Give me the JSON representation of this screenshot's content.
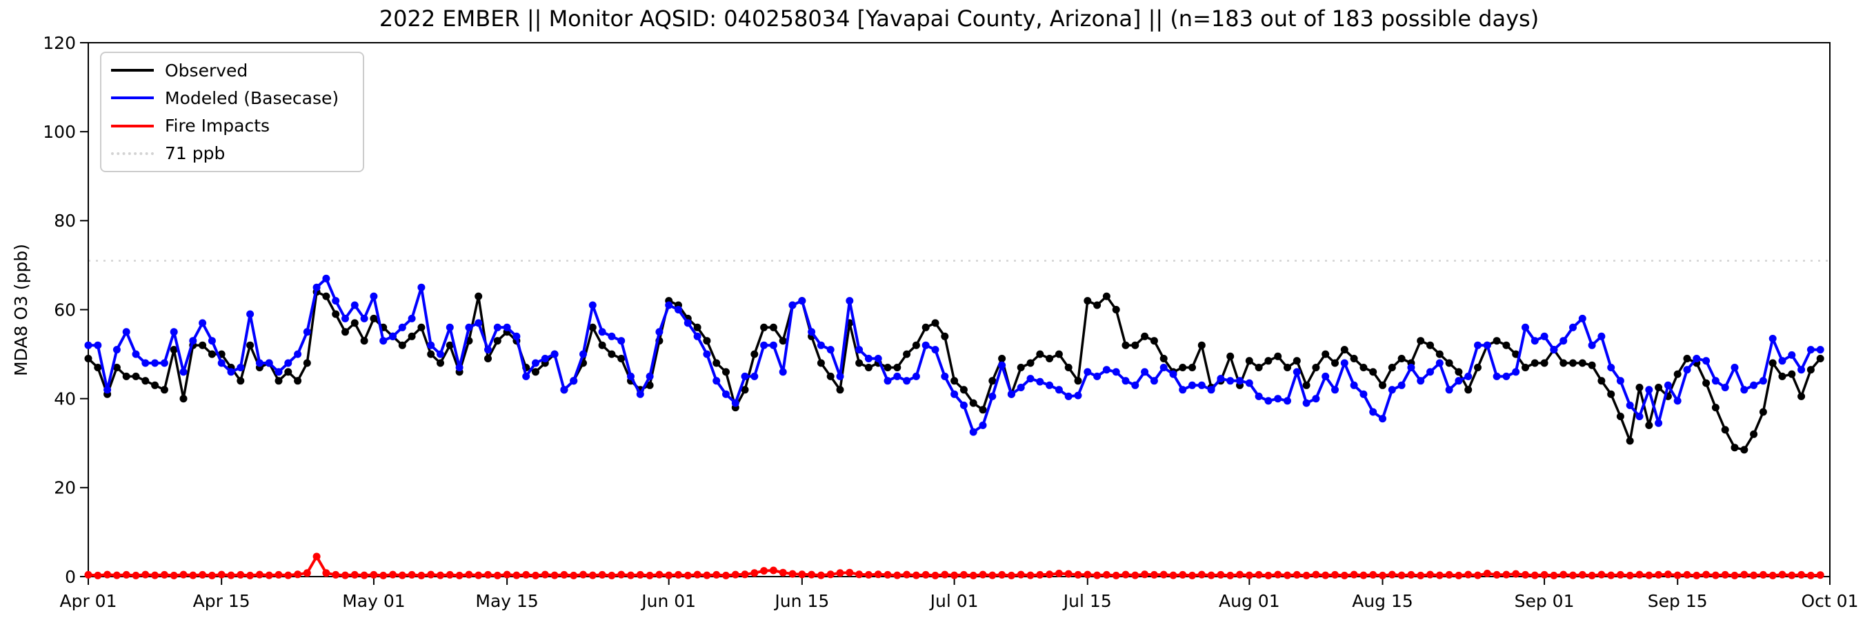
{
  "figure": {
    "title": "2022 EMBER || Monitor AQSID: 040258034 [Yavapai County, Arizona] || (n=183 out of 183 possible days)",
    "ylabel": "MDA8 O3 (ppb)",
    "background": "#ffffff"
  },
  "legend": {
    "position": "upper left",
    "items": [
      {
        "label": "Observed",
        "color": "#000000",
        "line_style": "solid"
      },
      {
        "label": "Modeled (Basecase)",
        "color": "#0000ff",
        "line_style": "solid"
      },
      {
        "label": "Fire Impacts",
        "color": "#ff0000",
        "line_style": "solid"
      },
      {
        "label": "71 ppb",
        "color": "#d3d3d3",
        "line_style": "dotted"
      }
    ]
  },
  "chart_data": {
    "type": "line",
    "title": "2022 EMBER || Monitor AQSID: 040258034 [Yavapai County, Arizona] || (n=183 out of 183 possible days)",
    "xlabel": "",
    "ylabel": "MDA8 O3 (ppb)",
    "ylim": [
      0,
      120
    ],
    "y_ticks": [
      0,
      20,
      40,
      60,
      80,
      100,
      120
    ],
    "x_tick_labels": [
      "Apr 01",
      "Apr 15",
      "May 01",
      "May 15",
      "Jun 01",
      "Jun 15",
      "Jul 01",
      "Jul 15",
      "Aug 01",
      "Aug 15",
      "Sep 01",
      "Sep 15",
      "Oct 01"
    ],
    "x_tick_day_index": [
      0,
      14,
      30,
      44,
      61,
      75,
      91,
      105,
      122,
      136,
      153,
      167,
      183
    ],
    "n_days": 183,
    "grid": false,
    "legend_position": "upper left",
    "threshold": {
      "label": "71 ppb",
      "value": 71,
      "color": "#d3d3d3",
      "style": "dotted"
    },
    "marker": "circle",
    "series": [
      {
        "name": "Observed",
        "color": "#000000",
        "values": [
          49,
          47,
          41,
          47,
          45,
          45,
          44,
          43,
          42,
          51,
          40,
          52,
          52,
          50,
          50,
          47,
          44,
          52,
          47,
          48,
          44,
          46,
          44,
          48,
          64,
          63,
          59,
          55,
          57,
          53,
          58,
          56,
          54,
          52,
          54,
          56,
          50,
          48,
          52,
          46,
          53,
          63,
          49,
          53,
          55,
          53,
          47,
          46,
          48,
          50,
          42,
          44,
          48,
          56,
          52,
          50,
          49,
          44,
          42,
          43,
          53,
          62,
          61,
          58,
          56,
          53,
          48,
          46,
          38,
          42,
          50,
          56,
          56,
          53,
          61,
          62,
          54,
          48,
          45,
          42,
          57,
          48,
          47,
          48,
          47,
          47,
          50,
          52,
          56,
          57,
          54,
          44,
          42,
          39,
          37.5,
          44,
          49,
          41,
          47,
          48,
          50,
          49,
          50,
          47,
          44,
          62,
          61,
          63,
          60,
          52,
          52,
          54,
          53,
          49,
          46,
          47,
          47,
          52,
          42.5,
          44,
          49.5,
          43,
          48.5,
          47,
          48.5,
          49.5,
          47,
          48.5,
          43,
          47,
          50,
          48,
          51,
          49,
          47,
          46,
          43,
          47,
          49,
          48,
          53,
          52,
          50,
          48,
          46,
          42,
          47,
          52,
          53,
          52,
          50,
          47,
          48,
          48,
          51,
          48,
          48,
          48,
          47.5,
          44,
          41,
          36,
          30.5,
          42.5,
          34,
          42.5,
          40.5,
          45.5,
          49,
          48,
          43.5,
          38,
          33,
          29,
          28.5,
          32,
          37,
          48,
          45,
          45.5,
          40.5,
          46.5,
          49
        ]
      },
      {
        "name": "Modeled (Basecase)",
        "color": "#0000ff",
        "values": [
          52,
          52,
          42,
          51,
          55,
          50,
          48,
          48,
          48,
          55,
          46,
          53,
          57,
          53,
          48,
          46,
          47,
          59,
          48,
          48,
          46,
          48,
          50,
          55,
          65,
          67,
          62,
          58,
          61,
          58,
          63,
          53,
          54,
          56,
          58,
          65,
          52,
          50,
          56,
          47,
          56,
          57,
          51,
          56,
          56,
          54,
          45,
          48,
          49,
          50,
          42,
          44,
          50,
          61,
          55,
          54,
          53,
          45,
          41,
          45,
          55,
          61,
          60,
          57,
          54,
          50,
          44,
          41,
          39,
          45,
          45,
          52,
          52,
          46,
          61,
          62,
          55,
          52,
          51,
          45,
          62,
          51,
          49,
          49,
          44,
          45,
          44,
          45,
          52,
          51,
          45,
          41,
          38.5,
          32.5,
          34,
          40.5,
          47.5,
          41,
          42.5,
          44.5,
          43.8,
          43,
          42,
          40.5,
          40.7,
          46,
          45,
          46.5,
          46,
          44,
          43,
          46,
          44,
          47,
          45.5,
          42,
          43,
          43,
          42,
          44.5,
          44,
          44,
          43.5,
          40.5,
          39.5,
          40,
          39.5,
          46,
          39,
          40,
          45,
          42,
          48,
          43,
          41,
          37,
          35.5,
          42,
          43,
          47,
          44,
          46,
          48,
          42,
          44,
          45,
          52,
          52,
          45,
          45,
          46,
          56,
          53,
          54,
          51,
          53,
          56,
          58,
          52,
          54,
          47,
          44,
          38.5,
          36,
          42,
          34.5,
          43,
          39.5,
          46.5,
          49,
          48.5,
          44,
          42.5,
          47,
          42,
          43,
          44,
          53.5,
          48.5,
          49.8,
          46.5,
          51,
          51
        ]
      },
      {
        "name": "Fire Impacts",
        "color": "#ff0000",
        "values": [
          0.4,
          0.25,
          0.45,
          0.3,
          0.4,
          0.25,
          0.45,
          0.3,
          0.4,
          0.25,
          0.45,
          0.3,
          0.4,
          0.25,
          0.45,
          0.3,
          0.4,
          0.25,
          0.45,
          0.3,
          0.4,
          0.3,
          0.5,
          0.8,
          4.5,
          0.8,
          0.4,
          0.3,
          0.4,
          0.3,
          0.4,
          0.25,
          0.45,
          0.3,
          0.4,
          0.25,
          0.45,
          0.3,
          0.4,
          0.25,
          0.45,
          0.3,
          0.4,
          0.25,
          0.45,
          0.3,
          0.4,
          0.25,
          0.45,
          0.3,
          0.4,
          0.25,
          0.45,
          0.3,
          0.4,
          0.25,
          0.45,
          0.3,
          0.4,
          0.25,
          0.45,
          0.3,
          0.4,
          0.25,
          0.45,
          0.3,
          0.4,
          0.25,
          0.45,
          0.5,
          0.8,
          1.3,
          1.4,
          0.9,
          0.6,
          0.5,
          0.45,
          0.3,
          0.5,
          0.8,
          0.9,
          0.5,
          0.4,
          0.5,
          0.4,
          0.3,
          0.45,
          0.3,
          0.4,
          0.25,
          0.45,
          0.3,
          0.4,
          0.25,
          0.45,
          0.3,
          0.4,
          0.25,
          0.45,
          0.3,
          0.4,
          0.5,
          0.7,
          0.6,
          0.4,
          0.45,
          0.3,
          0.4,
          0.25,
          0.45,
          0.3,
          0.5,
          0.4,
          0.45,
          0.3,
          0.4,
          0.25,
          0.45,
          0.3,
          0.4,
          0.25,
          0.45,
          0.3,
          0.4,
          0.25,
          0.45,
          0.3,
          0.4,
          0.25,
          0.45,
          0.3,
          0.4,
          0.25,
          0.45,
          0.3,
          0.4,
          0.25,
          0.45,
          0.3,
          0.4,
          0.25,
          0.45,
          0.3,
          0.4,
          0.25,
          0.45,
          0.3,
          0.7,
          0.4,
          0.45,
          0.6,
          0.4,
          0.3,
          0.4,
          0.25,
          0.45,
          0.3,
          0.4,
          0.25,
          0.45,
          0.3,
          0.4,
          0.25,
          0.45,
          0.3,
          0.4,
          0.5,
          0.3,
          0.4,
          0.25,
          0.45,
          0.3,
          0.4,
          0.25,
          0.45,
          0.3,
          0.4,
          0.25,
          0.45,
          0.3,
          0.4,
          0.25,
          0.35
        ]
      }
    ]
  }
}
